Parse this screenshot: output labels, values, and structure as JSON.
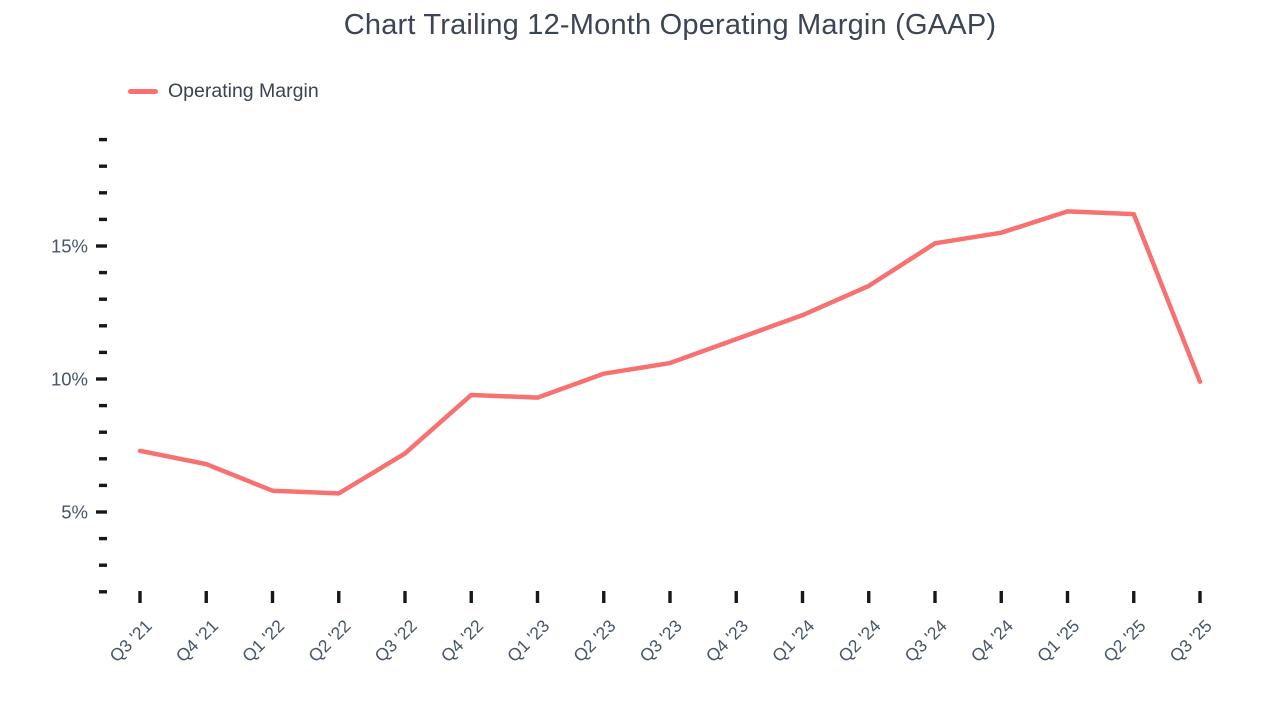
{
  "chart_data": {
    "type": "line",
    "title": "Chart Trailing 12-Month Operating Margin (GAAP)",
    "categories": [
      "Q3 '21",
      "Q4 '21",
      "Q1 '22",
      "Q2 '22",
      "Q3 '22",
      "Q4 '22",
      "Q1 '23",
      "Q2 '23",
      "Q3 '23",
      "Q4 '23",
      "Q1 '24",
      "Q2 '24",
      "Q3 '24",
      "Q4 '24",
      "Q1 '25",
      "Q2 '25",
      "Q3 '25"
    ],
    "series": [
      {
        "name": "Operating Margin",
        "color": "#f87171",
        "values": [
          7.3,
          6.8,
          5.8,
          5.7,
          7.2,
          9.4,
          9.3,
          10.2,
          10.6,
          11.5,
          12.4,
          13.5,
          15.1,
          15.5,
          16.3,
          16.2,
          9.9
        ]
      }
    ],
    "xlabel": "",
    "ylabel": "",
    "y_axis": {
      "unit": "%",
      "min": 2,
      "max": 19,
      "minor_tick_step": 1,
      "major_tick_values": [
        5,
        10,
        15
      ],
      "major_tick_labels": [
        "5%",
        "10%",
        "15%"
      ]
    },
    "x_axis": {
      "label_rotation_deg": -45
    },
    "legend_position": "top-left",
    "grid": false,
    "colors": {
      "line": "#f87171",
      "title_text": "#3c4555",
      "axis_text": "#475569",
      "tick_marks": "#16181d",
      "background": "#ffffff"
    }
  }
}
